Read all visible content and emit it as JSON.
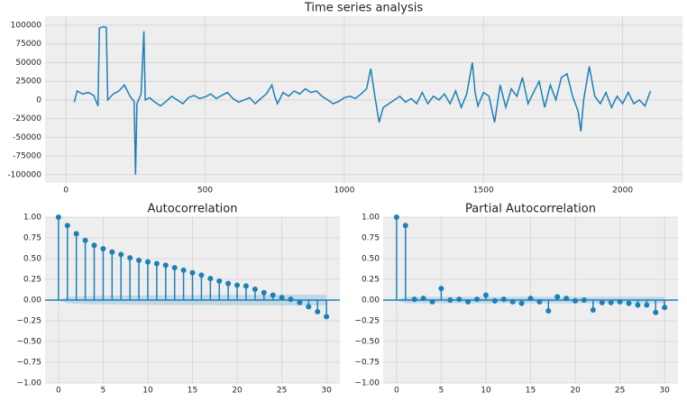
{
  "chart_data": [
    {
      "type": "line",
      "title": "Time series analysis",
      "color": "#1b80b7",
      "grid": true,
      "xlim": [
        -75,
        2215
      ],
      "ylim": [
        -111000,
        112000
      ],
      "xticks": [
        0,
        500,
        1000,
        1500,
        2000
      ],
      "yticks": [
        -100000,
        -75000,
        -50000,
        -25000,
        0,
        25000,
        50000,
        75000,
        100000
      ],
      "x": [
        30,
        40,
        60,
        80,
        100,
        115,
        120,
        135,
        145,
        150,
        170,
        190,
        210,
        230,
        245,
        250,
        255,
        270,
        280,
        285,
        300,
        320,
        340,
        360,
        380,
        400,
        420,
        440,
        460,
        480,
        500,
        520,
        540,
        560,
        580,
        600,
        620,
        640,
        660,
        680,
        700,
        720,
        740,
        750,
        760,
        780,
        800,
        820,
        840,
        860,
        880,
        900,
        920,
        940,
        960,
        980,
        1000,
        1020,
        1040,
        1060,
        1080,
        1095,
        1110,
        1125,
        1140,
        1160,
        1180,
        1200,
        1220,
        1240,
        1260,
        1280,
        1300,
        1320,
        1340,
        1360,
        1380,
        1400,
        1420,
        1440,
        1460,
        1470,
        1480,
        1500,
        1520,
        1540,
        1560,
        1580,
        1600,
        1620,
        1640,
        1660,
        1680,
        1700,
        1720,
        1740,
        1760,
        1780,
        1800,
        1820,
        1840,
        1850,
        1860,
        1880,
        1900,
        1920,
        1940,
        1960,
        1980,
        2000,
        2020,
        2040,
        2060,
        2080,
        2100
      ],
      "values": [
        -3000,
        12000,
        8000,
        10000,
        6000,
        -8000,
        96000,
        98000,
        97000,
        0,
        8000,
        12000,
        20000,
        5000,
        -2000,
        -100000,
        -5000,
        8000,
        92000,
        0,
        3000,
        -3000,
        -8000,
        -2000,
        5000,
        0,
        -5000,
        3000,
        6000,
        2000,
        4000,
        8000,
        2000,
        6000,
        10000,
        2000,
        -3000,
        0,
        3000,
        -5000,
        2000,
        8000,
        20000,
        5000,
        -5000,
        10000,
        5000,
        12000,
        8000,
        15000,
        10000,
        12000,
        5000,
        0,
        -5000,
        -2000,
        3000,
        5000,
        2000,
        8000,
        15000,
        42000,
        5000,
        -30000,
        -10000,
        -5000,
        0,
        5000,
        -3000,
        2000,
        -5000,
        10000,
        -5000,
        5000,
        0,
        8000,
        -5000,
        12000,
        -10000,
        8000,
        50000,
        10000,
        -8000,
        10000,
        5000,
        -30000,
        20000,
        -10000,
        15000,
        5000,
        30000,
        -5000,
        10000,
        25000,
        -10000,
        20000,
        0,
        30000,
        35000,
        5000,
        -15000,
        -42000,
        0,
        45000,
        5000,
        -5000,
        10000,
        -10000,
        5000,
        -5000,
        10000,
        -5000,
        0,
        -8000,
        12000
      ]
    },
    {
      "type": "stem",
      "title": "Autocorrelation",
      "color": "#1b80b7",
      "band_color": "#aecde3",
      "grid": true,
      "xlim": [
        -1.5,
        31.5
      ],
      "ylim": [
        -1,
        1
      ],
      "xticks": [
        0,
        5,
        10,
        15,
        20,
        25,
        30
      ],
      "yticks": [
        {
          "value": -1,
          "label": "−1.00"
        },
        {
          "value": -0.75,
          "label": "−0.75"
        },
        {
          "value": -0.5,
          "label": "−0.50"
        },
        {
          "value": -0.25,
          "label": "−0.25"
        },
        {
          "value": 0,
          "label": "0.00"
        },
        {
          "value": 0.25,
          "label": "0.25"
        },
        {
          "value": 0.5,
          "label": "0.50"
        },
        {
          "value": 0.75,
          "label": "0.75"
        },
        {
          "value": 1,
          "label": "1.00"
        }
      ],
      "x": [
        0,
        1,
        2,
        3,
        4,
        5,
        6,
        7,
        8,
        9,
        10,
        11,
        12,
        13,
        14,
        15,
        16,
        17,
        18,
        19,
        20,
        21,
        22,
        23,
        24,
        25,
        26,
        27,
        28,
        29,
        30
      ],
      "values": [
        1.0,
        0.9,
        0.8,
        0.72,
        0.66,
        0.62,
        0.58,
        0.55,
        0.51,
        0.48,
        0.46,
        0.44,
        0.42,
        0.39,
        0.36,
        0.33,
        0.3,
        0.26,
        0.23,
        0.2,
        0.18,
        0.17,
        0.13,
        0.09,
        0.06,
        0.03,
        0.01,
        -0.03,
        -0.08,
        -0.14,
        -0.2
      ],
      "confint": [
        0,
        0.04,
        0.045,
        0.048,
        0.05,
        0.052,
        0.053,
        0.054,
        0.055,
        0.056,
        0.057,
        0.058,
        0.058,
        0.059,
        0.06,
        0.06,
        0.061,
        0.061,
        0.062,
        0.062,
        0.062,
        0.063,
        0.063,
        0.063,
        0.063,
        0.064,
        0.064,
        0.064,
        0.064,
        0.064,
        0.064
      ]
    },
    {
      "type": "stem",
      "title": "Partial Autocorrelation",
      "color": "#1b80b7",
      "band_color": "#aecde3",
      "grid": true,
      "xlim": [
        -1.5,
        31.5
      ],
      "ylim": [
        -1,
        1
      ],
      "xticks": [
        0,
        5,
        10,
        15,
        20,
        25,
        30
      ],
      "yticks": [
        {
          "value": -1,
          "label": "−1.00"
        },
        {
          "value": -0.75,
          "label": "−0.75"
        },
        {
          "value": -0.5,
          "label": "−0.50"
        },
        {
          "value": -0.25,
          "label": "−0.25"
        },
        {
          "value": 0,
          "label": "0.00"
        },
        {
          "value": 0.25,
          "label": "0.25"
        },
        {
          "value": 0.5,
          "label": "0.50"
        },
        {
          "value": 0.75,
          "label": "0.75"
        },
        {
          "value": 1,
          "label": "1.00"
        }
      ],
      "x": [
        0,
        1,
        2,
        3,
        4,
        5,
        6,
        7,
        8,
        9,
        10,
        11,
        12,
        13,
        14,
        15,
        16,
        17,
        18,
        19,
        20,
        21,
        22,
        23,
        24,
        25,
        26,
        27,
        28,
        29,
        30
      ],
      "values": [
        1.0,
        0.9,
        0.01,
        0.02,
        -0.02,
        0.14,
        0.0,
        0.01,
        -0.02,
        0.01,
        0.06,
        -0.01,
        0.01,
        -0.02,
        -0.04,
        0.02,
        -0.02,
        -0.13,
        0.04,
        0.02,
        -0.01,
        0.0,
        -0.12,
        -0.03,
        -0.03,
        -0.02,
        -0.04,
        -0.06,
        -0.06,
        -0.15,
        -0.09
      ],
      "confint": [
        0,
        0.04,
        0.04,
        0.04,
        0.04,
        0.04,
        0.04,
        0.04,
        0.04,
        0.04,
        0.04,
        0.04,
        0.04,
        0.04,
        0.04,
        0.04,
        0.04,
        0.04,
        0.04,
        0.04,
        0.04,
        0.04,
        0.04,
        0.04,
        0.04,
        0.04,
        0.04,
        0.04,
        0.04,
        0.04,
        0.04
      ]
    }
  ]
}
